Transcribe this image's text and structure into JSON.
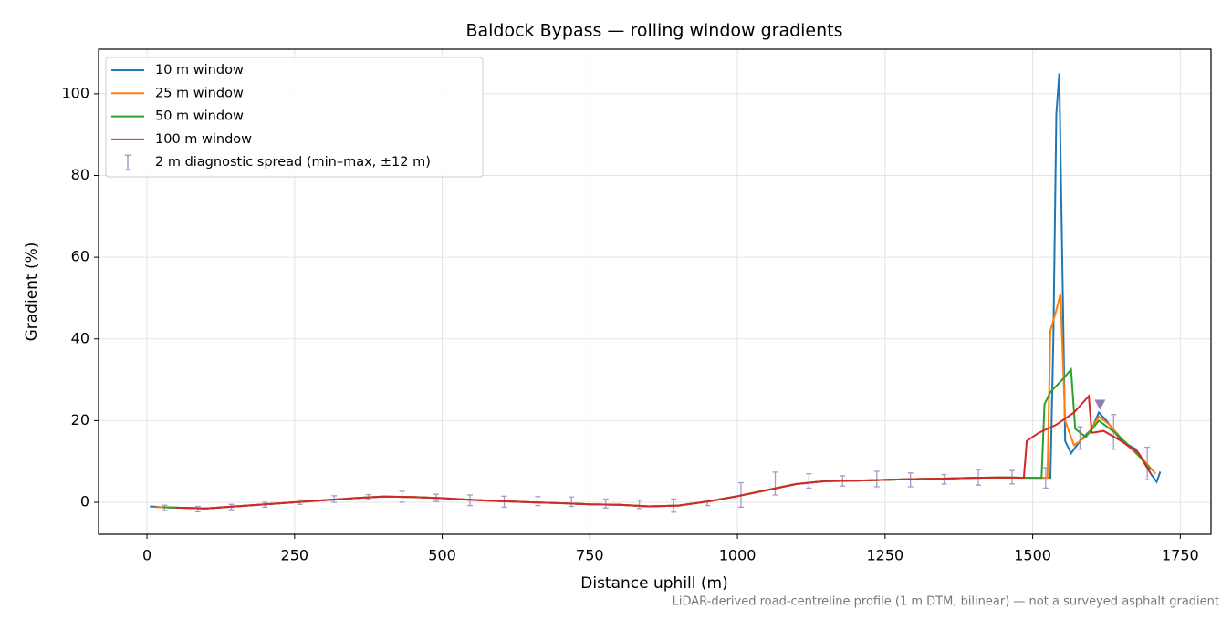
{
  "chart_data": {
    "type": "line",
    "title": "Baldock Bypass — rolling window gradients",
    "x_label": "Distance uphill (m)",
    "y_label": "Gradient (%)",
    "footnote": "LiDAR-derived road-centreline profile (1 m DTM, bilinear) — not a surveyed asphalt gradient",
    "xlim": [
      -82,
      1802
    ],
    "ylim": [
      -7.8,
      110.9
    ],
    "xticks": [
      0,
      250,
      500,
      750,
      1000,
      1250,
      1500,
      1750
    ],
    "yticks": [
      0,
      20,
      40,
      60,
      80,
      100
    ],
    "grid": true,
    "legend": "upper left",
    "series": [
      {
        "name": "10 m window",
        "color": "#1f77b4",
        "x": [
          5,
          25,
          50,
          100,
          150,
          200,
          250,
          300,
          350,
          400,
          450,
          500,
          550,
          600,
          650,
          700,
          750,
          800,
          850,
          900,
          950,
          1000,
          1050,
          1100,
          1150,
          1200,
          1250,
          1300,
          1350,
          1400,
          1450,
          1500,
          1530,
          1535,
          1540,
          1545,
          1550,
          1555,
          1565,
          1580,
          1600,
          1612,
          1625,
          1650,
          1675,
          1700,
          1710,
          1716
        ],
        "values": [
          -1,
          -1.2,
          -1.3,
          -1.5,
          -1.0,
          -0.5,
          0,
          0.5,
          1.0,
          1.4,
          1.3,
          1.0,
          0.6,
          0.3,
          0,
          -0.2,
          -0.5,
          -0.6,
          -1.0,
          -0.8,
          0.2,
          1.5,
          3,
          4.5,
          5.2,
          5.3,
          5.5,
          5.7,
          5.8,
          6,
          6.1,
          6,
          6,
          40,
          95,
          105,
          60,
          15,
          12,
          15,
          18,
          22,
          20,
          15,
          13,
          7,
          5,
          7.5
        ]
      },
      {
        "name": "25 m window",
        "color": "#ff7f0e",
        "x": [
          15,
          50,
          100,
          150,
          200,
          250,
          300,
          350,
          400,
          450,
          500,
          550,
          600,
          650,
          700,
          750,
          800,
          850,
          900,
          950,
          1000,
          1050,
          1100,
          1150,
          1200,
          1250,
          1300,
          1350,
          1400,
          1450,
          1500,
          1525,
          1530,
          1540,
          1547,
          1555,
          1570,
          1590,
          1612,
          1630,
          1660,
          1690,
          1708
        ],
        "values": [
          -1.2,
          -1.3,
          -1.5,
          -1.0,
          -0.5,
          0,
          0.5,
          1.0,
          1.4,
          1.3,
          1.0,
          0.6,
          0.3,
          0,
          -0.2,
          -0.5,
          -0.6,
          -1.0,
          -0.8,
          0.2,
          1.5,
          3,
          4.5,
          5.2,
          5.3,
          5.5,
          5.7,
          5.8,
          6,
          6.1,
          6,
          6,
          42,
          47,
          51,
          20,
          14,
          16,
          21,
          19,
          14,
          10,
          7
        ]
      },
      {
        "name": "50 m window",
        "color": "#2ca02c",
        "x": [
          25,
          50,
          100,
          150,
          200,
          250,
          300,
          350,
          400,
          450,
          500,
          550,
          600,
          650,
          700,
          750,
          800,
          850,
          900,
          950,
          1000,
          1050,
          1100,
          1150,
          1200,
          1250,
          1300,
          1350,
          1400,
          1450,
          1500,
          1515,
          1520,
          1530,
          1550,
          1565,
          1572,
          1590,
          1612,
          1640,
          1670,
          1700
        ],
        "values": [
          -1.2,
          -1.3,
          -1.5,
          -1.0,
          -0.5,
          0,
          0.5,
          1.0,
          1.4,
          1.3,
          1.0,
          0.6,
          0.3,
          0,
          -0.2,
          -0.5,
          -0.6,
          -1.0,
          -0.8,
          0.2,
          1.5,
          3,
          4.5,
          5.2,
          5.3,
          5.5,
          5.7,
          5.8,
          6,
          6.1,
          6,
          6,
          24,
          27,
          30,
          32.5,
          18,
          16,
          20,
          17,
          13,
          8
        ]
      },
      {
        "name": "100 m window",
        "color": "#d62728",
        "x": [
          50,
          100,
          150,
          200,
          250,
          300,
          350,
          400,
          450,
          500,
          550,
          600,
          650,
          700,
          750,
          800,
          850,
          900,
          950,
          1000,
          1050,
          1100,
          1150,
          1200,
          1250,
          1300,
          1350,
          1400,
          1450,
          1485,
          1490,
          1510,
          1540,
          1570,
          1595,
          1600,
          1620,
          1650,
          1680,
          1700
        ],
        "values": [
          -1.3,
          -1.5,
          -1.0,
          -0.5,
          0,
          0.5,
          1.0,
          1.4,
          1.3,
          1.0,
          0.6,
          0.3,
          0,
          -0.2,
          -0.5,
          -0.6,
          -1.0,
          -0.8,
          0.2,
          1.5,
          3,
          4.5,
          5.2,
          5.3,
          5.5,
          5.7,
          5.8,
          6,
          6.1,
          6,
          15,
          17,
          19,
          22,
          26,
          17,
          17.5,
          15,
          12,
          7
        ]
      }
    ],
    "errorbars": {
      "name": "2 m diagnostic spread (min–max, ±12 m)",
      "color": "#a59bc8",
      "x": [
        30,
        86,
        143,
        200,
        259,
        317,
        375,
        432,
        490,
        547,
        605,
        662,
        719,
        777,
        834,
        892,
        949,
        1006,
        1064,
        1121,
        1178,
        1236,
        1293,
        1350,
        1408,
        1465,
        1522,
        1580,
        1637,
        1694
      ],
      "low": [
        -2,
        -2.3,
        -1.8,
        -1.2,
        -0.5,
        0,
        0.7,
        0,
        0.2,
        -0.8,
        -1.2,
        -0.8,
        -1,
        -1.4,
        -1.5,
        -2.4,
        -0.8,
        -1.2,
        1.8,
        3.5,
        4,
        3.8,
        3.8,
        4.5,
        4.2,
        4.5,
        3.5,
        13,
        13,
        5.5
      ],
      "high": [
        -0.7,
        -1,
        -0.5,
        0,
        0.6,
        1.6,
        1.9,
        2.7,
        2,
        1.8,
        1.5,
        1.4,
        1.3,
        0.8,
        0.5,
        0.8,
        0.6,
        4.8,
        7.4,
        7,
        6.5,
        7.6,
        7.2,
        6.8,
        8,
        7.8,
        8.5,
        18.5,
        21.5,
        13.5
      ]
    },
    "marker": {
      "x": 1614,
      "y": 24,
      "color": "#8c7fb0"
    }
  }
}
